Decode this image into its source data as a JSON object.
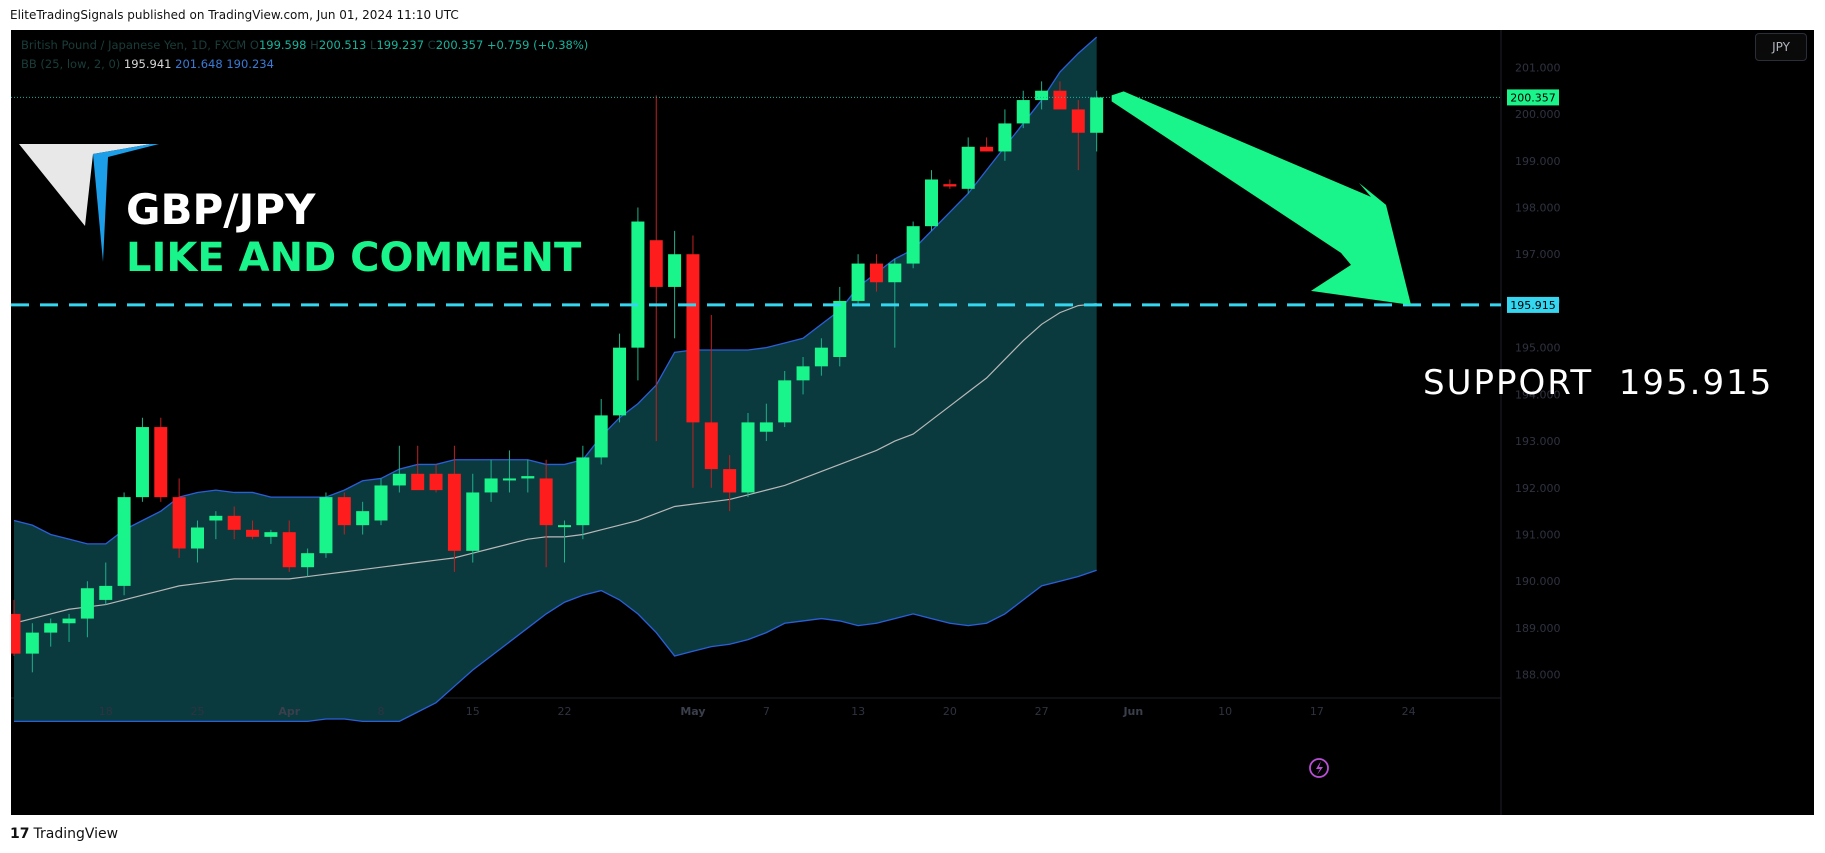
{
  "header": {
    "published_text": "EliteTradingSignals published on TradingView.com, Jun 01, 2024 11:10 UTC"
  },
  "legend": {
    "symbol_name": "British Pound / Japanese Yen, 1D, FXCM",
    "o_label": "O",
    "o_value": "199.598",
    "h_label": "H",
    "h_value": "200.513",
    "l_label": "L",
    "l_value": "199.237",
    "c_label": "C",
    "c_value": "200.357",
    "change": "+0.759 (+0.38%)",
    "bb_label": "BB (25, low, 2, 0)",
    "bb_basis": "195.941",
    "bb_upper": "201.648",
    "bb_lower": "190.234"
  },
  "overlay": {
    "pair": "GBP/JPY",
    "call_to_action": "LIKE AND COMMENT",
    "support_text": "SUPPORT  195.915"
  },
  "currency_button": "JPY",
  "price_labels": {
    "last": "200.357",
    "support": "195.915"
  },
  "footer": {
    "logo_mark": "17",
    "brand": "TradingView"
  },
  "colors": {
    "up": "#19f58a",
    "down": "#ff1c1c",
    "band_fill": "#0a3a3e",
    "band_line": "#2b5fd9",
    "basis_line": "#b8b8b8",
    "support_line": "#35d6f0",
    "arrow": "#19f58a",
    "background": "#000000"
  },
  "chart_data": {
    "type": "candlestick",
    "y_range": [
      187.5,
      201.8
    ],
    "y_ticks": [
      "201.000",
      "200.000",
      "199.000",
      "198.000",
      "197.000",
      "196.000",
      "195.000",
      "194.000",
      "193.000",
      "192.000",
      "191.000",
      "190.000",
      "189.000",
      "188.000"
    ],
    "y_tick_values": [
      201,
      200,
      199,
      198,
      197,
      196,
      195,
      194,
      193,
      192,
      191,
      190,
      189,
      188
    ],
    "x_tick_labels": [
      {
        "label": "18",
        "index": 5,
        "bold": false
      },
      {
        "label": "25",
        "index": 10,
        "bold": false
      },
      {
        "label": "Apr",
        "index": 15,
        "bold": true
      },
      {
        "label": "8",
        "index": 20,
        "bold": false
      },
      {
        "label": "15",
        "index": 25,
        "bold": false
      },
      {
        "label": "22",
        "index": 30,
        "bold": false
      },
      {
        "label": "May",
        "index": 37,
        "bold": true
      },
      {
        "label": "7",
        "index": 41,
        "bold": false
      },
      {
        "label": "13",
        "index": 46,
        "bold": false
      },
      {
        "label": "20",
        "index": 51,
        "bold": false
      },
      {
        "label": "27",
        "index": 56,
        "bold": false
      },
      {
        "label": "Jun",
        "index": 61,
        "bold": true
      },
      {
        "label": "10",
        "index": 66,
        "bold": false
      },
      {
        "label": "17",
        "index": 71,
        "bold": false
      },
      {
        "label": "24",
        "index": 76,
        "bold": false
      }
    ],
    "support_level": 195.915,
    "last_price": 200.357,
    "candles": [
      {
        "o": 189.3,
        "h": 189.6,
        "l": 188.4,
        "c": 188.45
      },
      {
        "o": 188.45,
        "h": 189.1,
        "l": 188.05,
        "c": 188.9
      },
      {
        "o": 188.9,
        "h": 189.2,
        "l": 188.6,
        "c": 189.1
      },
      {
        "o": 189.1,
        "h": 189.3,
        "l": 188.7,
        "c": 189.2
      },
      {
        "o": 189.2,
        "h": 190.0,
        "l": 188.8,
        "c": 189.85
      },
      {
        "o": 189.6,
        "h": 190.4,
        "l": 189.5,
        "c": 189.9
      },
      {
        "o": 189.9,
        "h": 191.9,
        "l": 189.7,
        "c": 191.8
      },
      {
        "o": 191.8,
        "h": 193.5,
        "l": 191.7,
        "c": 193.3
      },
      {
        "o": 193.3,
        "h": 193.5,
        "l": 191.7,
        "c": 191.8
      },
      {
        "o": 191.8,
        "h": 192.2,
        "l": 190.5,
        "c": 190.7
      },
      {
        "o": 190.7,
        "h": 191.3,
        "l": 190.4,
        "c": 191.15
      },
      {
        "o": 191.3,
        "h": 191.5,
        "l": 190.9,
        "c": 191.4
      },
      {
        "o": 191.4,
        "h": 191.6,
        "l": 190.9,
        "c": 191.1
      },
      {
        "o": 191.1,
        "h": 191.3,
        "l": 190.9,
        "c": 190.95
      },
      {
        "o": 190.95,
        "h": 191.1,
        "l": 190.8,
        "c": 191.05
      },
      {
        "o": 191.05,
        "h": 191.3,
        "l": 190.2,
        "c": 190.3
      },
      {
        "o": 190.3,
        "h": 190.7,
        "l": 190.1,
        "c": 190.6
      },
      {
        "o": 190.6,
        "h": 191.9,
        "l": 190.5,
        "c": 191.8
      },
      {
        "o": 191.8,
        "h": 191.9,
        "l": 191.0,
        "c": 191.2
      },
      {
        "o": 191.2,
        "h": 191.7,
        "l": 191.0,
        "c": 191.5
      },
      {
        "o": 191.3,
        "h": 192.2,
        "l": 191.2,
        "c": 192.05
      },
      {
        "o": 192.05,
        "h": 192.9,
        "l": 191.9,
        "c": 192.3
      },
      {
        "o": 192.3,
        "h": 192.9,
        "l": 192.0,
        "c": 191.95
      },
      {
        "o": 192.3,
        "h": 192.5,
        "l": 191.9,
        "c": 191.95
      },
      {
        "o": 192.3,
        "h": 192.9,
        "l": 190.2,
        "c": 190.65
      },
      {
        "o": 190.65,
        "h": 192.3,
        "l": 190.4,
        "c": 191.9
      },
      {
        "o": 191.9,
        "h": 192.6,
        "l": 191.7,
        "c": 192.2
      },
      {
        "o": 192.2,
        "h": 192.8,
        "l": 191.9,
        "c": 192.2
      },
      {
        "o": 192.2,
        "h": 192.6,
        "l": 191.9,
        "c": 192.25
      },
      {
        "o": 192.2,
        "h": 192.6,
        "l": 190.3,
        "c": 191.2
      },
      {
        "o": 191.2,
        "h": 191.3,
        "l": 190.4,
        "c": 191.2
      },
      {
        "o": 191.2,
        "h": 192.9,
        "l": 190.9,
        "c": 192.65
      },
      {
        "o": 192.65,
        "h": 193.9,
        "l": 192.5,
        "c": 193.55
      },
      {
        "o": 193.55,
        "h": 195.3,
        "l": 193.4,
        "c": 195.0
      },
      {
        "o": 195.0,
        "h": 198.0,
        "l": 194.3,
        "c": 197.7
      },
      {
        "o": 197.3,
        "h": 200.4,
        "l": 193.0,
        "c": 196.3
      },
      {
        "o": 196.3,
        "h": 197.5,
        "l": 195.2,
        "c": 197.0
      },
      {
        "o": 197.0,
        "h": 197.4,
        "l": 192.0,
        "c": 193.4
      },
      {
        "o": 193.4,
        "h": 195.7,
        "l": 192.0,
        "c": 192.4
      },
      {
        "o": 192.4,
        "h": 192.7,
        "l": 191.5,
        "c": 191.9
      },
      {
        "o": 191.9,
        "h": 193.6,
        "l": 191.8,
        "c": 193.4
      },
      {
        "o": 193.2,
        "h": 193.8,
        "l": 193.0,
        "c": 193.4
      },
      {
        "o": 193.4,
        "h": 194.5,
        "l": 193.3,
        "c": 194.3
      },
      {
        "o": 194.3,
        "h": 194.8,
        "l": 194.0,
        "c": 194.6
      },
      {
        "o": 194.6,
        "h": 195.2,
        "l": 194.4,
        "c": 195.0
      },
      {
        "o": 194.8,
        "h": 196.3,
        "l": 194.6,
        "c": 196.0
      },
      {
        "o": 196.0,
        "h": 197.0,
        "l": 195.9,
        "c": 196.8
      },
      {
        "o": 196.8,
        "h": 197.0,
        "l": 196.2,
        "c": 196.4
      },
      {
        "o": 196.4,
        "h": 196.9,
        "l": 195.0,
        "c": 196.8
      },
      {
        "o": 196.8,
        "h": 197.7,
        "l": 196.7,
        "c": 197.6
      },
      {
        "o": 197.6,
        "h": 198.8,
        "l": 197.5,
        "c": 198.6
      },
      {
        "o": 198.5,
        "h": 198.6,
        "l": 198.4,
        "c": 198.45
      },
      {
        "o": 198.4,
        "h": 199.5,
        "l": 198.3,
        "c": 199.3
      },
      {
        "o": 199.3,
        "h": 199.5,
        "l": 199.2,
        "c": 199.2
      },
      {
        "o": 199.2,
        "h": 200.1,
        "l": 199.0,
        "c": 199.8
      },
      {
        "o": 199.8,
        "h": 200.5,
        "l": 199.7,
        "c": 200.3
      },
      {
        "o": 200.3,
        "h": 200.7,
        "l": 200.1,
        "c": 200.5
      },
      {
        "o": 200.5,
        "h": 200.7,
        "l": 200.1,
        "c": 200.1
      },
      {
        "o": 200.1,
        "h": 200.3,
        "l": 198.8,
        "c": 199.6
      },
      {
        "o": 199.6,
        "h": 200.5,
        "l": 199.2,
        "c": 200.357
      }
    ],
    "bb_upper": [
      191.3,
      191.2,
      191.0,
      190.9,
      190.8,
      190.8,
      191.1,
      191.3,
      191.5,
      191.8,
      191.9,
      191.95,
      191.9,
      191.9,
      191.8,
      191.8,
      191.8,
      191.8,
      191.95,
      192.15,
      192.2,
      192.4,
      192.5,
      192.5,
      192.6,
      192.6,
      192.6,
      192.6,
      192.6,
      192.5,
      192.5,
      192.6,
      193.1,
      193.5,
      193.8,
      194.2,
      194.9,
      194.95,
      194.95,
      194.95,
      194.95,
      195.0,
      195.1,
      195.2,
      195.5,
      195.8,
      196.3,
      196.6,
      196.9,
      197.1,
      197.5,
      197.9,
      198.3,
      198.8,
      199.3,
      199.8,
      200.3,
      200.9,
      201.3,
      201.648
    ],
    "bb_basis": [
      189.1,
      189.2,
      189.3,
      189.4,
      189.45,
      189.5,
      189.6,
      189.7,
      189.8,
      189.9,
      189.95,
      190.0,
      190.05,
      190.05,
      190.05,
      190.05,
      190.1,
      190.15,
      190.2,
      190.25,
      190.3,
      190.35,
      190.4,
      190.45,
      190.5,
      190.6,
      190.7,
      190.8,
      190.9,
      190.95,
      190.95,
      191.0,
      191.1,
      191.2,
      191.3,
      191.45,
      191.6,
      191.65,
      191.7,
      191.75,
      191.85,
      191.95,
      192.05,
      192.2,
      192.35,
      192.5,
      192.65,
      192.8,
      193.0,
      193.15,
      193.45,
      193.75,
      194.05,
      194.35,
      194.75,
      195.15,
      195.5,
      195.75,
      195.9,
      195.941
    ],
    "bb_lower": [
      187.0,
      187.0,
      187.0,
      187.0,
      187.0,
      187.0,
      187.0,
      187.0,
      187.0,
      187.0,
      187.0,
      187.0,
      187.0,
      187.0,
      187.0,
      187.0,
      187.0,
      187.05,
      187.05,
      187.0,
      187.0,
      187.0,
      187.2,
      187.4,
      187.75,
      188.1,
      188.4,
      188.7,
      189.0,
      189.3,
      189.55,
      189.7,
      189.8,
      189.6,
      189.3,
      188.9,
      188.4,
      188.5,
      188.6,
      188.65,
      188.75,
      188.9,
      189.1,
      189.15,
      189.2,
      189.15,
      189.05,
      189.1,
      189.2,
      189.3,
      189.2,
      189.1,
      189.05,
      189.1,
      189.3,
      189.6,
      189.9,
      190.0,
      190.1,
      190.234
    ]
  }
}
